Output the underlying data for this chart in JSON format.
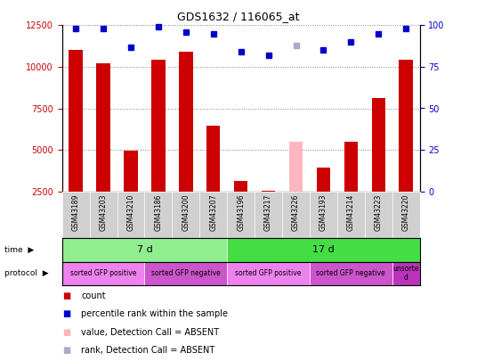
{
  "title": "GDS1632 / 116065_at",
  "samples": [
    "GSM43189",
    "GSM43203",
    "GSM43210",
    "GSM43186",
    "GSM43200",
    "GSM43207",
    "GSM43196",
    "GSM43217",
    "GSM43226",
    "GSM43193",
    "GSM43214",
    "GSM43223",
    "GSM43220"
  ],
  "bar_values": [
    11000,
    10200,
    4950,
    10450,
    10900,
    6450,
    3150,
    2550,
    null,
    3950,
    5500,
    8100,
    10450
  ],
  "bar_absent": [
    null,
    null,
    null,
    null,
    null,
    null,
    null,
    null,
    5500,
    null,
    null,
    null,
    null
  ],
  "rank_values": [
    98,
    98,
    87,
    99,
    96,
    95,
    84,
    82,
    null,
    85,
    90,
    95,
    98
  ],
  "rank_absent": [
    null,
    null,
    null,
    null,
    null,
    null,
    null,
    null,
    88,
    null,
    null,
    null,
    null
  ],
  "ylim_left": [
    2500,
    12500
  ],
  "ylim_right": [
    0,
    100
  ],
  "yticks_left": [
    2500,
    5000,
    7500,
    10000,
    12500
  ],
  "yticks_right": [
    0,
    25,
    50,
    75,
    100
  ],
  "bar_color": "#cc0000",
  "bar_absent_color": "#ffb6c1",
  "rank_color": "#0000cc",
  "rank_absent_color": "#aaaacc",
  "time_groups": [
    {
      "label": "7 d",
      "start": 0,
      "end": 6,
      "color": "#90ee90"
    },
    {
      "label": "17 d",
      "start": 6,
      "end": 13,
      "color": "#44dd44"
    }
  ],
  "protocol_groups": [
    {
      "label": "sorted GFP positive",
      "start": 0,
      "end": 3,
      "color": "#ee82ee"
    },
    {
      "label": "sorted GFP negative",
      "start": 3,
      "end": 6,
      "color": "#cc55cc"
    },
    {
      "label": "sorted GFP positive",
      "start": 6,
      "end": 9,
      "color": "#ee82ee"
    },
    {
      "label": "sorted GFP negative",
      "start": 9,
      "end": 12,
      "color": "#cc55cc"
    },
    {
      "label": "unsorte\nd",
      "start": 12,
      "end": 13,
      "color": "#bb33bb"
    }
  ],
  "left_tick_color": "#cc0000",
  "right_tick_color": "#0000cc",
  "legend_items": [
    {
      "label": "count",
      "color": "#cc0000"
    },
    {
      "label": "percentile rank within the sample",
      "color": "#0000cc"
    },
    {
      "label": "value, Detection Call = ABSENT",
      "color": "#ffb6c1"
    },
    {
      "label": "rank, Detection Call = ABSENT",
      "color": "#aaaacc"
    }
  ]
}
